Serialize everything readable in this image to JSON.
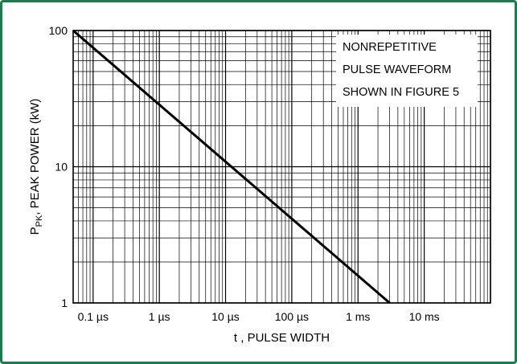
{
  "colors": {
    "frame": "#1f7a4d",
    "grid": "#000000",
    "line": "#000000",
    "background": "#ffffff"
  },
  "chart_data": {
    "type": "line",
    "x_scale": "log",
    "y_scale": "log",
    "xlim_seconds": [
      5e-08,
      0.1
    ],
    "ylim_kw": [
      1,
      100
    ],
    "x_ticks": [
      {
        "value": 1e-07,
        "label": "0.1 µs"
      },
      {
        "value": 1e-06,
        "label": "1 µs"
      },
      {
        "value": 1e-05,
        "label": "10 µs"
      },
      {
        "value": 0.0001,
        "label": "100 µs"
      },
      {
        "value": 0.001,
        "label": "1 ms"
      },
      {
        "value": 0.01,
        "label": "10 ms"
      }
    ],
    "y_ticks": [
      {
        "value": 1,
        "label": "1"
      },
      {
        "value": 10,
        "label": "10"
      },
      {
        "value": 100,
        "label": "100"
      }
    ],
    "xlabel": "t , PULSE WIDTH",
    "ylabel": {
      "main": "P",
      "sub": "PK",
      "rest": ", PEAK POWER (kW)"
    },
    "grid": true,
    "series": [
      {
        "x": [
          5e-08,
          0.003
        ],
        "y": [
          100,
          1
        ]
      }
    ],
    "annotation": {
      "lines": [
        "NONREPETITIVE",
        "PULSE WAVEFORM",
        "SHOWN IN FIGURE 5"
      ],
      "placement": "top-right"
    }
  }
}
